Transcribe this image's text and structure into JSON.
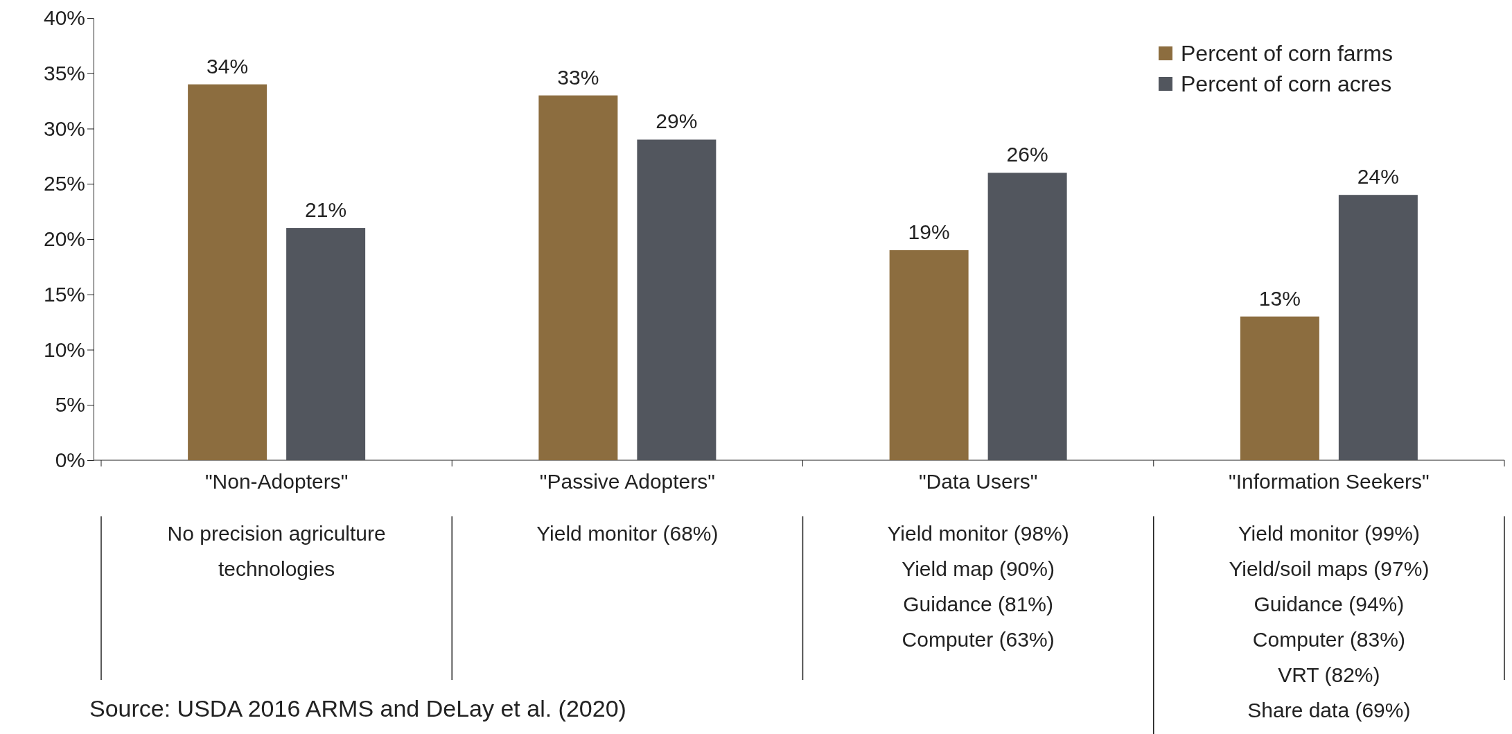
{
  "chart_data": {
    "type": "bar",
    "categories": [
      "\"Non-Adopters\"",
      "\"Passive Adopters\"",
      "\"Data Users\"",
      "\"Information Seekers\""
    ],
    "series": [
      {
        "name": "Percent of corn farms",
        "color": "#8c6d3f",
        "values": [
          34,
          33,
          19,
          13
        ]
      },
      {
        "name": "Percent of corn acres",
        "color": "#52565e",
        "values": [
          21,
          29,
          26,
          24
        ]
      }
    ],
    "ylim": [
      0,
      40
    ],
    "yticks": [
      {
        "value": 0,
        "label": "0%"
      },
      {
        "value": 5,
        "label": "5%"
      },
      {
        "value": 10,
        "label": "10%"
      },
      {
        "value": 15,
        "label": "15%"
      },
      {
        "value": 20,
        "label": "20%"
      },
      {
        "value": 25,
        "label": "25%"
      },
      {
        "value": 30,
        "label": "30%"
      },
      {
        "value": 35,
        "label": "35%"
      },
      {
        "value": 40,
        "label": "40%"
      }
    ],
    "value_labels": [
      [
        "34%",
        "33%",
        "19%",
        "13%"
      ],
      [
        "21%",
        "29%",
        "26%",
        "24%"
      ]
    ],
    "legend": "top right",
    "grid": false,
    "annotations": [
      "No precision agriculture\ntechnologies",
      "Yield monitor (68%)",
      "Yield monitor (98%)\nYield map (90%)\nGuidance (81%)\nComputer (63%)",
      "Yield monitor (99%)\nYield/soil maps (97%)\nGuidance  (94%)\nComputer (83%)\nVRT (82%)\nShare data (69%)",
      "Source: USDA 2016 ARMS and DeLay et al. (2020)"
    ]
  }
}
